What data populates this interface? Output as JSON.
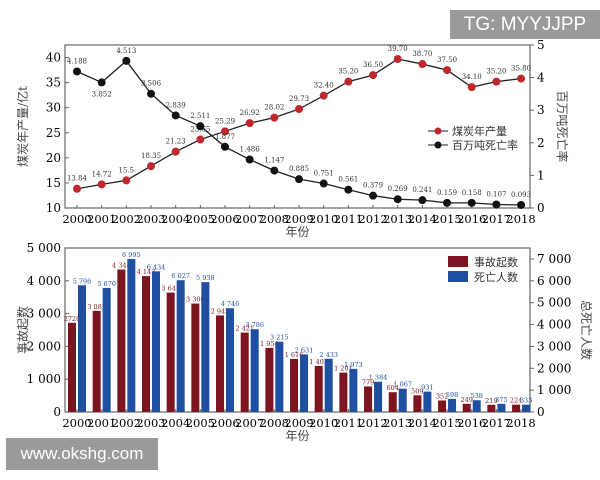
{
  "watermarks": {
    "top": "TG: MYYJJPP",
    "bottom": "www.okshg.com"
  },
  "chart_data": [
    {
      "type": "line",
      "xlabel": "年份",
      "ylabel": "煤炭年产量/亿t",
      "y2label": "百万吨死亡率",
      "x": [
        "2000",
        "2001",
        "2002",
        "2003",
        "2004",
        "2005",
        "2006",
        "2007",
        "2008",
        "2009",
        "2010",
        "2011",
        "2012",
        "2013",
        "2014",
        "2015",
        "2016",
        "2017",
        "2018"
      ],
      "ylim": [
        10,
        42.5
      ],
      "yticks": [
        10,
        15,
        20,
        25,
        30,
        35,
        40
      ],
      "y2lim": [
        0,
        5
      ],
      "y2ticks": [
        0,
        1,
        2,
        3,
        4,
        5
      ],
      "legend": "center-right",
      "series": [
        {
          "name": "煤炭年产量",
          "axis": "left",
          "color": "#c0272d",
          "values": [
            13.84,
            14.72,
            15.5,
            18.35,
            21.23,
            23.65,
            25.29,
            26.92,
            28.02,
            29.73,
            32.4,
            35.2,
            36.5,
            39.7,
            38.7,
            37.5,
            34.1,
            35.2,
            35.8
          ],
          "labels": [
            "13.84",
            "14.72",
            "15.5",
            "18.35",
            "21.23",
            "23.65",
            "25.29",
            "26.92",
            "28.02",
            "29.73",
            "32.40",
            "35.20",
            "36.50",
            "39.70",
            "38.70",
            "37.50",
            "34.10",
            "35.20",
            "35.80"
          ]
        },
        {
          "name": "百万吨死亡率",
          "axis": "right",
          "color": "#111111",
          "values": [
            4.188,
            3.852,
            4.513,
            3.506,
            2.839,
            2.511,
            1.877,
            1.486,
            1.147,
            0.885,
            0.751,
            0.561,
            0.379,
            0.269,
            0.241,
            0.159,
            0.158,
            0.107,
            0.093
          ],
          "labels": [
            "4.188",
            "3.852",
            "4.513",
            "3.506",
            "2.839",
            "2.511",
            "1.877",
            "1.486",
            "1.147",
            "0.885",
            "0.751",
            "0.561",
            "0.379",
            "0.269",
            "0.241",
            "0.159",
            "0.158",
            "0.107",
            "0.093"
          ]
        }
      ]
    },
    {
      "type": "bar",
      "xlabel": "年份",
      "ylabel": "事故起数",
      "y2label": "总死亡人数",
      "categories": [
        "2000",
        "2001",
        "2002",
        "2003",
        "2004",
        "2005",
        "2006",
        "2007",
        "2008",
        "2009",
        "2010",
        "2011",
        "2012",
        "2013",
        "2014",
        "2015",
        "2016",
        "2017",
        "2018"
      ],
      "ylim": [
        0,
        5000
      ],
      "yticks": [
        0,
        1000,
        2000,
        3000,
        4000,
        5000
      ],
      "ytick_labels": [
        "0",
        "1 000",
        "2 000",
        "3 000",
        "4 000",
        "5 000"
      ],
      "y2lim": [
        0,
        7500
      ],
      "y2ticks": [
        0,
        1000,
        2000,
        3000,
        4000,
        5000,
        6000,
        7000
      ],
      "y2tick_labels": [
        "0",
        "1 000",
        "2 000",
        "3 000",
        "4 000",
        "5 000",
        "6 000",
        "7 000"
      ],
      "legend": "top-right",
      "series": [
        {
          "name": "事故起数",
          "axis": "left",
          "color": "#7d1420",
          "values": [
            2720,
            3082,
            4344,
            4143,
            3641,
            3306,
            2945,
            2421,
            1954,
            1616,
            1403,
            1201,
            779,
            604,
            509,
            352,
            249,
            219,
            224
          ],
          "labels": [
            "2720",
            "3 082",
            "4 344",
            "4 143",
            "3 641",
            "3 306",
            "2 945",
            "2 421",
            "1 954",
            "1 616",
            "1 403",
            "1 201",
            "779",
            "604",
            "509",
            "352",
            "249",
            "219",
            "224"
          ]
        },
        {
          "name": "死亡人数",
          "axis": "right",
          "color": "#1f4fa0",
          "values": [
            5796,
            5670,
            6995,
            6434,
            6027,
            5938,
            4746,
            3786,
            3215,
            2631,
            2433,
            1973,
            1384,
            1067,
            931,
            598,
            538,
            375,
            333
          ],
          "labels": [
            "5 796",
            "5 670",
            "6 995",
            "6 434",
            "6 027",
            "5 938",
            "4 746",
            "3 786",
            "3 215",
            "2 631",
            "2 433",
            "1 973",
            "1 384",
            "1 067",
            "931",
            "598",
            "538",
            "375",
            "333"
          ]
        }
      ]
    }
  ]
}
